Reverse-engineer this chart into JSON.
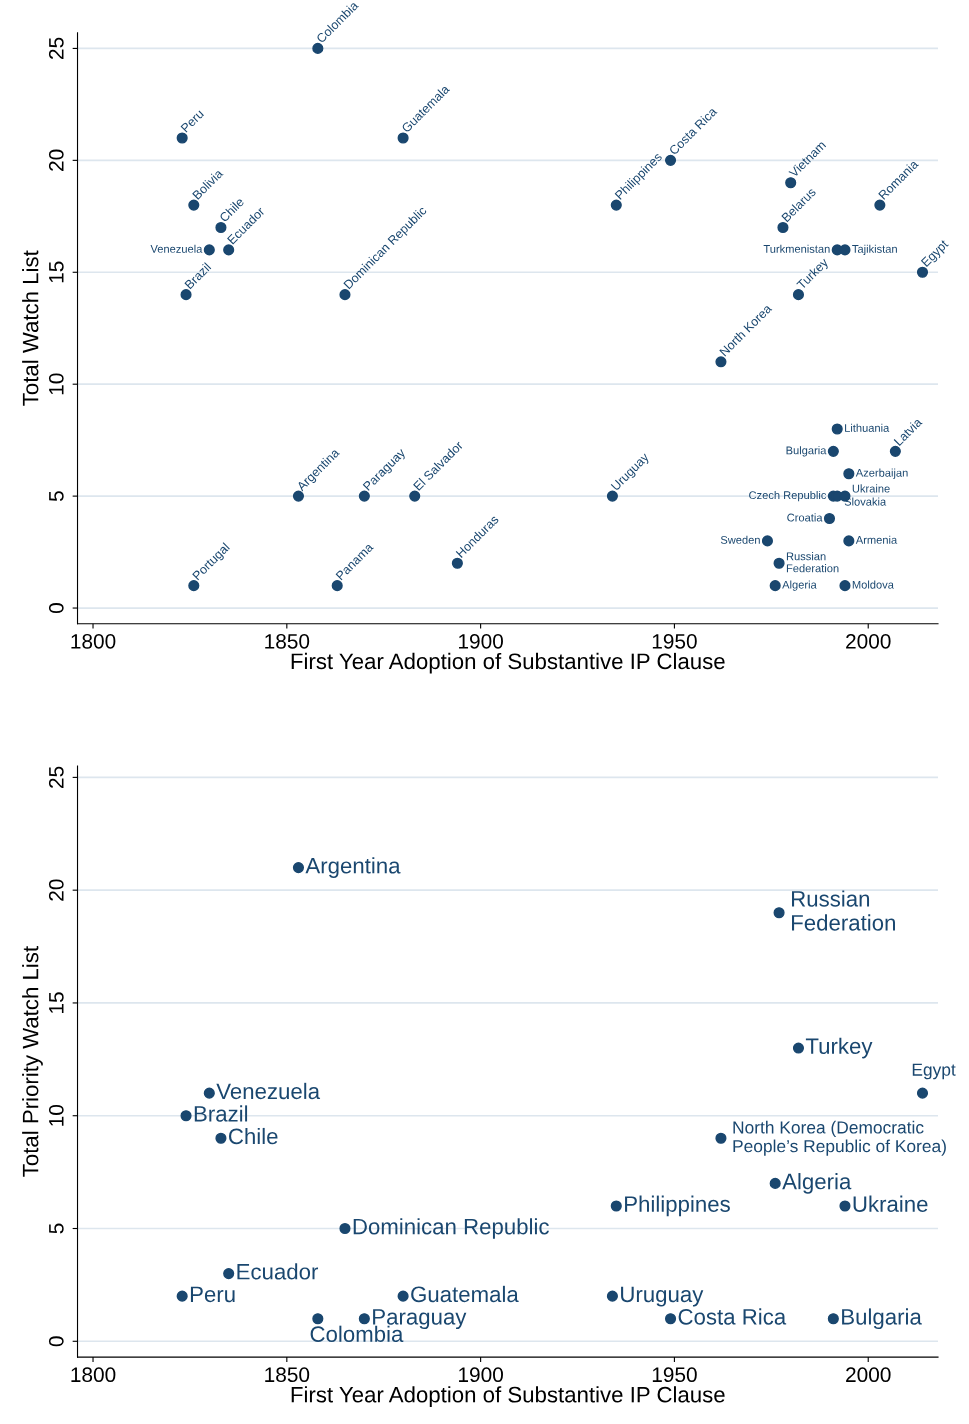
{
  "chart_data": [
    {
      "type": "scatter",
      "xlabel": "First Year Adoption of Substantive IP Clause",
      "ylabel": "Total Watch List",
      "xlim": [
        1796,
        2018
      ],
      "ylim": [
        -0.7,
        25.7
      ],
      "xticks": [
        1800,
        1850,
        1900,
        1950,
        2000
      ],
      "yticks": [
        0,
        5,
        10,
        15,
        20,
        25
      ],
      "grid": "y",
      "marker": "circle",
      "series": [
        {
          "color": "#1a476f",
          "x": [
            1858,
            1823,
            1880,
            1949,
            1935,
            1980,
            2003,
            1826,
            1833,
            1830,
            1835,
            1978,
            1992,
            1994,
            2014,
            1824,
            1865,
            1982,
            1962,
            1992,
            1991,
            2007,
            1995,
            1991,
            1992,
            1994,
            1990,
            1853,
            1870,
            1883,
            1934,
            1974,
            1995,
            1894,
            1977,
            1826,
            1863,
            1976,
            1994
          ],
          "values": [
            25,
            21,
            21,
            20,
            18,
            19,
            18,
            18,
            17,
            16,
            16,
            17,
            16,
            16,
            15,
            14,
            14,
            14,
            11,
            8,
            7,
            7,
            6,
            5,
            5,
            5,
            4,
            5,
            5,
            5,
            5,
            3,
            3,
            2,
            2,
            1,
            1,
            1,
            1
          ]
        }
      ],
      "annotations": [
        {
          "text": "Colombia",
          "x": 1858,
          "y": 25
        },
        {
          "text": "Peru",
          "x": 1823,
          "y": 21
        },
        {
          "text": "Guatemala",
          "x": 1880,
          "y": 21
        },
        {
          "text": "Costa Rica",
          "x": 1949,
          "y": 20
        },
        {
          "text": "Philippines",
          "x": 1935,
          "y": 18
        },
        {
          "text": "Vietnam",
          "x": 1980,
          "y": 19
        },
        {
          "text": "Romania",
          "x": 2003,
          "y": 18
        },
        {
          "text": "Bolivia",
          "x": 1826,
          "y": 18
        },
        {
          "text": "Chile",
          "x": 1833,
          "y": 17
        },
        {
          "text": "Venezuela",
          "x": 1830,
          "y": 16
        },
        {
          "text": "Ecuador",
          "x": 1835,
          "y": 16
        },
        {
          "text": "Belarus",
          "x": 1978,
          "y": 17
        },
        {
          "text": "Turkmenistan",
          "x": 1992,
          "y": 16
        },
        {
          "text": "Tajikistan",
          "x": 1994,
          "y": 16
        },
        {
          "text": "Egypt",
          "x": 2014,
          "y": 15
        },
        {
          "text": "Brazil",
          "x": 1824,
          "y": 14
        },
        {
          "text": "Dominican Republic",
          "x": 1865,
          "y": 14
        },
        {
          "text": "Turkey",
          "x": 1982,
          "y": 14
        },
        {
          "text": "North Korea",
          "x": 1962,
          "y": 11
        },
        {
          "text": "Lithuania",
          "x": 1992,
          "y": 8
        },
        {
          "text": "Bulgaria",
          "x": 1991,
          "y": 7
        },
        {
          "text": "Latvia",
          "x": 2007,
          "y": 7
        },
        {
          "text": "Azerbaijan",
          "x": 1995,
          "y": 6
        },
        {
          "text": "Czech Republic",
          "x": 1991,
          "y": 5
        },
        {
          "text": "Slovakia",
          "x": 1992,
          "y": 5
        },
        {
          "text": "Ukraine",
          "x": 1994,
          "y": 5
        },
        {
          "text": "Croatia",
          "x": 1990,
          "y": 4
        },
        {
          "text": "Argentina",
          "x": 1853,
          "y": 5
        },
        {
          "text": "Paraguay",
          "x": 1870,
          "y": 5
        },
        {
          "text": "El Salvador",
          "x": 1883,
          "y": 5
        },
        {
          "text": "Uruguay",
          "x": 1934,
          "y": 5
        },
        {
          "text": "Sweden",
          "x": 1974,
          "y": 3
        },
        {
          "text": "Armenia",
          "x": 1995,
          "y": 3
        },
        {
          "text": "Honduras",
          "x": 1894,
          "y": 2
        },
        {
          "text": "Russian\nFederation",
          "x": 1977,
          "y": 2
        },
        {
          "text": "Portugal",
          "x": 1826,
          "y": 1
        },
        {
          "text": "Panama",
          "x": 1863,
          "y": 1
        },
        {
          "text": "Algeria",
          "x": 1976,
          "y": 1
        },
        {
          "text": "Moldova",
          "x": 1994,
          "y": 1
        }
      ]
    },
    {
      "type": "scatter",
      "xlabel": "First Year Adoption of Substantive IP Clause",
      "ylabel": "Total Priority Watch List",
      "xlim": [
        1796,
        2018
      ],
      "ylim": [
        -0.7,
        25.5
      ],
      "xticks": [
        1800,
        1850,
        1900,
        1950,
        2000
      ],
      "yticks": [
        0,
        5,
        10,
        15,
        20,
        25
      ],
      "grid": "y",
      "marker": "circle",
      "series": [
        {
          "color": "#1a476f",
          "x": [
            1853,
            1977,
            1982,
            2014,
            1830,
            1824,
            1833,
            1962,
            1976,
            1935,
            1994,
            1865,
            1835,
            1823,
            1880,
            1934,
            1858,
            1870,
            1949,
            1991
          ],
          "values": [
            21,
            19,
            13,
            11,
            11,
            10,
            9,
            9,
            7,
            6,
            6,
            5,
            3,
            2,
            2,
            2,
            1,
            1,
            1,
            1
          ]
        }
      ],
      "annotations": [
        {
          "text": "Argentina",
          "x": 1853,
          "y": 21
        },
        {
          "text": "Russian\nFederation",
          "x": 1977,
          "y": 19
        },
        {
          "text": "Turkey",
          "x": 1982,
          "y": 13
        },
        {
          "text": "Egypt",
          "x": 2014,
          "y": 11
        },
        {
          "text": "Venezuela",
          "x": 1830,
          "y": 11
        },
        {
          "text": "Brazil",
          "x": 1824,
          "y": 10
        },
        {
          "text": "Chile",
          "x": 1833,
          "y": 9
        },
        {
          "text": "North Korea (Democratic\nPeople’s Republic of Korea)",
          "x": 1962,
          "y": 9
        },
        {
          "text": "Algeria",
          "x": 1976,
          "y": 7
        },
        {
          "text": "Philippines",
          "x": 1935,
          "y": 6
        },
        {
          "text": "Ukraine",
          "x": 1994,
          "y": 6
        },
        {
          "text": "Dominican Republic",
          "x": 1865,
          "y": 5
        },
        {
          "text": "Ecuador",
          "x": 1835,
          "y": 3
        },
        {
          "text": "Peru",
          "x": 1823,
          "y": 2
        },
        {
          "text": "Guatemala",
          "x": 1880,
          "y": 2
        },
        {
          "text": "Uruguay",
          "x": 1934,
          "y": 2
        },
        {
          "text": "Colombia",
          "x": 1858,
          "y": 1
        },
        {
          "text": "Paraguay",
          "x": 1870,
          "y": 1
        },
        {
          "text": "Costa Rica",
          "x": 1949,
          "y": 1
        },
        {
          "text": "Bulgaria",
          "x": 1991,
          "y": 1
        }
      ]
    }
  ]
}
